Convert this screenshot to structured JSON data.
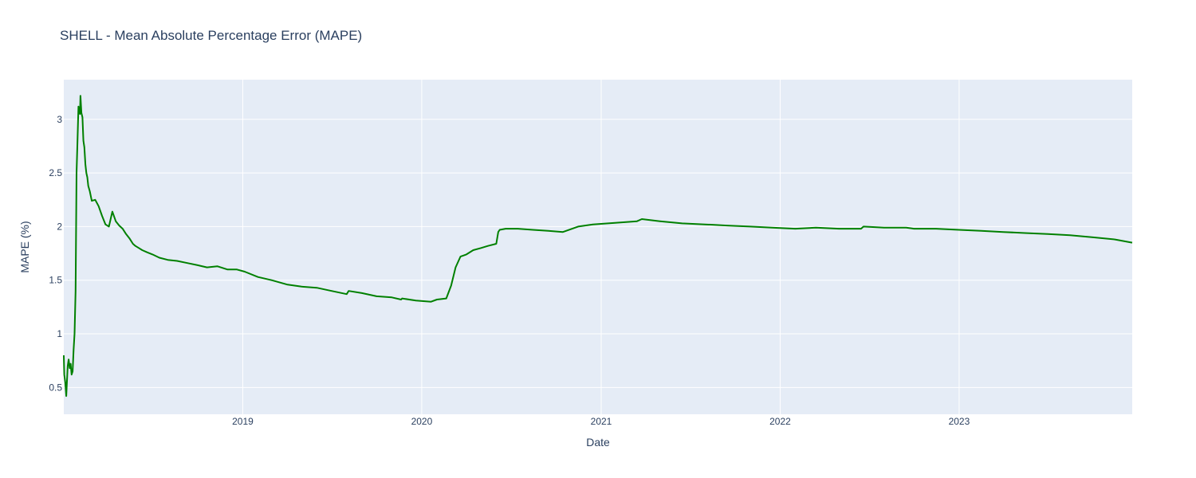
{
  "chart_data": {
    "type": "line",
    "title": "SHELL - Mean Absolute Percentage Error (MAPE)",
    "xlabel": "Date",
    "ylabel": "MAPE (%)",
    "xlim": [
      "2018-01-01",
      "2023-12-20"
    ],
    "ylim": [
      0.25,
      3.37
    ],
    "x_ticks": [
      "2019",
      "2020",
      "2021",
      "2022",
      "2023"
    ],
    "y_ticks": [
      "0.5",
      "1",
      "1.5",
      "2",
      "2.5",
      "3"
    ],
    "grid": true,
    "colors": {
      "line": "#008000",
      "plot_bg": "#E5ECF6",
      "grid": "#ffffff",
      "text": "#2a3f5f"
    },
    "series": [
      {
        "x": [
          "2018-01-01",
          "2018-01-02",
          "2018-01-04",
          "2018-01-06",
          "2018-01-09",
          "2018-01-11",
          "2018-01-13",
          "2018-01-15",
          "2018-01-17",
          "2018-01-19",
          "2018-01-21",
          "2018-01-23",
          "2018-01-25",
          "2018-01-27",
          "2018-01-29",
          "2018-01-31",
          "2018-02-03",
          "2018-02-04",
          "2018-02-06",
          "2018-02-08",
          "2018-02-10",
          "2018-02-12",
          "2018-02-14",
          "2018-02-16",
          "2018-02-18",
          "2018-02-20",
          "2018-02-23",
          "2018-02-27",
          "2018-03-06",
          "2018-03-13",
          "2018-03-20",
          "2018-03-27",
          "2018-04-03",
          "2018-04-10",
          "2018-04-17",
          "2018-04-24",
          "2018-05-01",
          "2018-05-08",
          "2018-05-15",
          "2018-05-22",
          "2018-05-27",
          "2018-06-03",
          "2018-06-10",
          "2018-06-20",
          "2018-07-01",
          "2018-07-15",
          "2018-08-01",
          "2018-08-20",
          "2018-09-10",
          "2018-10-01",
          "2018-10-20",
          "2018-11-10",
          "2018-12-01",
          "2018-12-20",
          "2019-01-05",
          "2019-02-01",
          "2019-03-01",
          "2019-04-01",
          "2019-05-01",
          "2019-06-01",
          "2019-07-01",
          "2019-08-01",
          "2019-08-05",
          "2019-09-01",
          "2019-10-01",
          "2019-11-01",
          "2019-11-20",
          "2019-11-22",
          "2019-12-20",
          "2020-01-20",
          "2020-02-01",
          "2020-02-20",
          "2020-03-01",
          "2020-03-10",
          "2020-03-20",
          "2020-04-01",
          "2020-04-15",
          "2020-05-01",
          "2020-05-15",
          "2020-06-01",
          "2020-06-05",
          "2020-06-08",
          "2020-06-20",
          "2020-07-15",
          "2020-08-15",
          "2020-09-15",
          "2020-10-15",
          "2020-11-15",
          "2020-12-15",
          "2021-01-15",
          "2021-02-15",
          "2021-03-15",
          "2021-03-25",
          "2021-05-01",
          "2021-06-15",
          "2021-08-01",
          "2021-09-15",
          "2021-11-01",
          "2021-12-15",
          "2022-02-01",
          "2022-03-15",
          "2022-05-01",
          "2022-06-15",
          "2022-06-20",
          "2022-08-01",
          "2022-09-15",
          "2022-10-01",
          "2022-11-15",
          "2023-01-01",
          "2023-02-15",
          "2023-04-01",
          "2023-05-15",
          "2023-07-01",
          "2023-08-15",
          "2023-10-01",
          "2023-11-15",
          "2023-12-20"
        ],
        "y": [
          0.8,
          0.62,
          0.55,
          0.42,
          0.7,
          0.76,
          0.68,
          0.72,
          0.62,
          0.65,
          0.85,
          1.0,
          1.4,
          2.5,
          2.8,
          3.12,
          3.05,
          3.22,
          3.06,
          3.02,
          2.8,
          2.74,
          2.58,
          2.5,
          2.46,
          2.38,
          2.33,
          2.24,
          2.25,
          2.19,
          2.1,
          2.02,
          2.0,
          2.14,
          2.05,
          2.01,
          1.98,
          1.93,
          1.89,
          1.84,
          1.82,
          1.8,
          1.78,
          1.76,
          1.74,
          1.71,
          1.69,
          1.68,
          1.66,
          1.64,
          1.62,
          1.63,
          1.6,
          1.6,
          1.58,
          1.53,
          1.5,
          1.46,
          1.44,
          1.43,
          1.4,
          1.37,
          1.4,
          1.38,
          1.35,
          1.34,
          1.32,
          1.33,
          1.31,
          1.3,
          1.32,
          1.33,
          1.45,
          1.62,
          1.72,
          1.74,
          1.78,
          1.8,
          1.82,
          1.84,
          1.95,
          1.97,
          1.98,
          1.98,
          1.97,
          1.96,
          1.95,
          2.0,
          2.02,
          2.03,
          2.04,
          2.05,
          2.07,
          2.05,
          2.03,
          2.02,
          2.01,
          2.0,
          1.99,
          1.98,
          1.99,
          1.98,
          1.98,
          2.0,
          1.99,
          1.99,
          1.98,
          1.98,
          1.97,
          1.96,
          1.95,
          1.94,
          1.93,
          1.92,
          1.9,
          1.88,
          1.85
        ]
      }
    ]
  }
}
